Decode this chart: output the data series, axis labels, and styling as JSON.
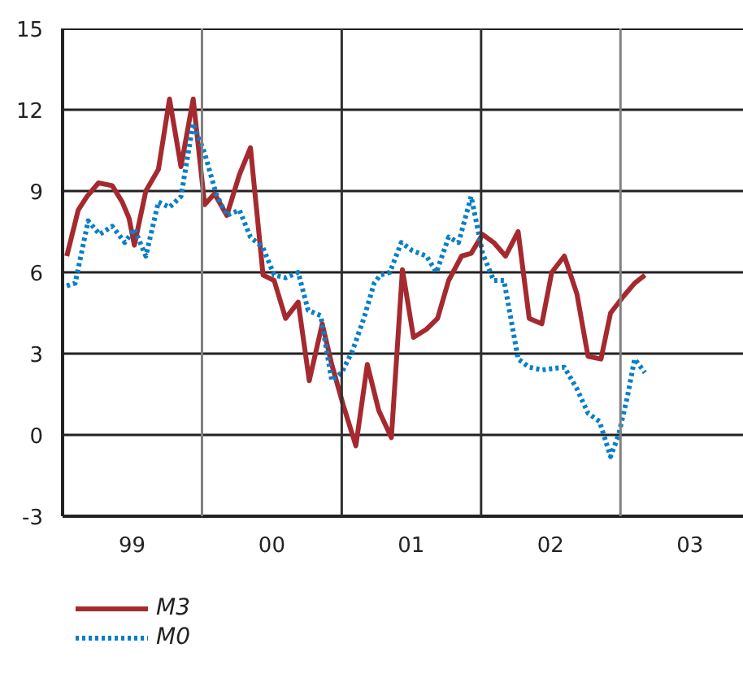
{
  "chart_data": {
    "type": "line",
    "xlim": [
      "1999-01-01",
      "2003-11-20"
    ],
    "ylim": [
      -3,
      15
    ],
    "xticks": [
      {
        "value": "1999-07-02",
        "label": "99"
      },
      {
        "value": "2000-07-02",
        "label": "00"
      },
      {
        "value": "2001-07-02",
        "label": "01"
      },
      {
        "value": "2002-07-02",
        "label": "02"
      },
      {
        "value": "2003-07-02",
        "label": "03"
      }
    ],
    "yticks": [
      -3,
      0,
      3,
      6,
      9,
      12,
      15
    ],
    "grid": "y",
    "legend": "bottom",
    "ref_lines": [
      {
        "axis": "x",
        "value": "2000-01-01",
        "color": "#808080"
      },
      {
        "axis": "x",
        "value": "2001-01-01",
        "color": "#303030"
      },
      {
        "axis": "x",
        "value": "2002-01-01",
        "color": "#303030"
      },
      {
        "axis": "x",
        "value": "2003-01-01",
        "color": "#808080"
      }
    ],
    "series": [
      {
        "name": "M3",
        "color": "#a52a2f",
        "line_style": "solid",
        "x": [
          "1999-01-12",
          "1999-02-11",
          "1999-03-06",
          "1999-04-05",
          "1999-05-11",
          "1999-06-06",
          "1999-06-24",
          "1999-07-08",
          "1999-08-07",
          "1999-09-09",
          "1999-10-08",
          "1999-11-07",
          "1999-12-09",
          "2000-01-08",
          "2000-02-03",
          "2000-03-06",
          "2000-04-08",
          "2000-05-07",
          "2000-06-09",
          "2000-07-08",
          "2000-08-07",
          "2000-09-09",
          "2000-10-08",
          "2000-11-11",
          "2000-12-06",
          "2001-01-05",
          "2001-02-07",
          "2001-03-09",
          "2001-04-08",
          "2001-05-11",
          "2001-06-09",
          "2001-07-08",
          "2001-08-11",
          "2001-09-09",
          "2001-10-08",
          "2001-11-11",
          "2001-12-06",
          "2002-01-05",
          "2002-02-03",
          "2002-03-06",
          "2002-04-08",
          "2002-05-07",
          "2002-06-09",
          "2002-07-05",
          "2002-08-07",
          "2002-09-09",
          "2002-10-08",
          "2002-11-11",
          "2002-12-06",
          "2003-01-08",
          "2003-02-07",
          "2003-03-06"
        ],
        "values": [
          6.6,
          8.3,
          8.8,
          9.3,
          9.2,
          8.6,
          8.0,
          7.0,
          9.0,
          9.8,
          12.4,
          9.9,
          12.4,
          8.5,
          8.9,
          8.1,
          9.6,
          10.6,
          5.9,
          5.7,
          4.3,
          4.9,
          2.0,
          4.1,
          2.6,
          1.1,
          -0.4,
          2.6,
          0.9,
          -0.1,
          6.1,
          3.6,
          3.9,
          4.3,
          5.7,
          6.6,
          6.7,
          7.4,
          7.1,
          6.6,
          7.5,
          4.3,
          4.1,
          6.0,
          6.6,
          5.2,
          2.9,
          2.8,
          4.5,
          5.1,
          5.6,
          5.9
        ]
      },
      {
        "name": "M0",
        "color": "#0a7fc6",
        "line_style": "dotted",
        "x": [
          "1999-01-12",
          "1999-02-03",
          "1999-03-09",
          "1999-04-08",
          "1999-05-11",
          "1999-06-13",
          "1999-07-08",
          "1999-08-07",
          "1999-09-09",
          "1999-10-08",
          "1999-11-07",
          "1999-12-09",
          "2000-01-08",
          "2000-02-07",
          "2000-03-06",
          "2000-04-08",
          "2000-05-07",
          "2000-06-09",
          "2000-07-08",
          "2000-08-07",
          "2000-09-09",
          "2000-10-05",
          "2000-11-07",
          "2000-12-06",
          "2001-01-01",
          "2001-01-29",
          "2001-02-28",
          "2001-03-27",
          "2001-04-12",
          "2001-05-07",
          "2001-06-06",
          "2001-07-05",
          "2001-08-11",
          "2001-09-06",
          "2001-10-08",
          "2001-11-03",
          "2001-12-06",
          "2002-01-05",
          "2002-02-03",
          "2002-03-02",
          "2002-04-08",
          "2002-05-07",
          "2002-06-09",
          "2002-08-07",
          "2002-09-09",
          "2002-10-08",
          "2002-11-07",
          "2002-12-06",
          "2002-12-27",
          "2003-01-19",
          "2003-02-07",
          "2003-03-06"
        ],
        "values": [
          5.5,
          5.6,
          7.9,
          7.4,
          7.7,
          7.1,
          7.6,
          6.6,
          8.6,
          8.4,
          8.8,
          11.5,
          10.4,
          8.9,
          8.1,
          8.3,
          7.3,
          6.9,
          5.9,
          5.8,
          6.0,
          4.6,
          4.4,
          2.0,
          2.3,
          3.1,
          4.3,
          5.6,
          5.9,
          6.0,
          7.1,
          6.8,
          6.6,
          6.0,
          7.3,
          7.1,
          8.8,
          6.7,
          5.7,
          5.7,
          2.8,
          2.5,
          2.4,
          2.5,
          1.7,
          0.8,
          0.5,
          -0.8,
          0.0,
          1.4,
          2.8,
          2.3
        ]
      }
    ]
  }
}
